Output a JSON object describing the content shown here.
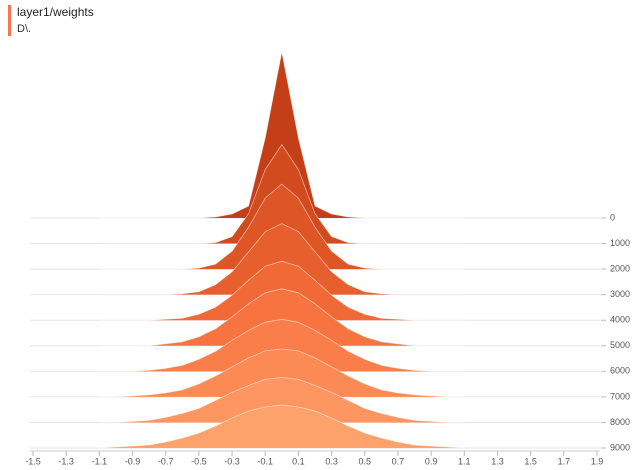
{
  "chart_data": {
    "type": "ridgeline",
    "title": "layer1/weights",
    "subtitle": "D\\.",
    "x": [
      -1.1,
      -1.0,
      -0.9,
      -0.8,
      -0.7,
      -0.6,
      -0.5,
      -0.4,
      -0.3,
      -0.2,
      -0.1,
      0,
      0.1,
      0.2,
      0.3,
      0.4,
      0.5,
      0.6,
      0.7,
      0.8,
      0.9,
      1.0,
      1.1
    ],
    "steps": [
      0,
      1000,
      2000,
      3000,
      4000,
      5000,
      6000,
      7000,
      8000,
      9000
    ],
    "series": [
      {
        "color": "#c43e17",
        "values": [
          0,
          0,
          0,
          0,
          0,
          0,
          0,
          1,
          4,
          12,
          80,
          166,
          80,
          12,
          4,
          1,
          0,
          0,
          0,
          0,
          0,
          0,
          0
        ]
      },
      {
        "color": "#d24b1f",
        "values": [
          0,
          0,
          0,
          0,
          0,
          0,
          0,
          1,
          7,
          30,
          74,
          99,
          74,
          30,
          7,
          1,
          0,
          0,
          0,
          0,
          0,
          0,
          0
        ]
      },
      {
        "color": "#de5526",
        "values": [
          0,
          0,
          0,
          0,
          0,
          0,
          1,
          5,
          18,
          42,
          71,
          85,
          71,
          42,
          18,
          5,
          1,
          0,
          0,
          0,
          0,
          0,
          0
        ]
      },
      {
        "color": "#e85f2e",
        "values": [
          0,
          0,
          0,
          0,
          0,
          1,
          3,
          10,
          23,
          43,
          63,
          71,
          63,
          43,
          23,
          10,
          3,
          1,
          0,
          0,
          0,
          0,
          0
        ]
      },
      {
        "color": "#f06936",
        "values": [
          0,
          0,
          0,
          0,
          1,
          2,
          6,
          13,
          25,
          40,
          54,
          59,
          54,
          40,
          25,
          13,
          6,
          2,
          1,
          0,
          0,
          0,
          0
        ]
      },
      {
        "color": "#f77440",
        "values": [
          0,
          0,
          0,
          0,
          2,
          4,
          9,
          17,
          29,
          42,
          53,
          57,
          53,
          42,
          29,
          17,
          9,
          4,
          2,
          0,
          0,
          0,
          0
        ]
      },
      {
        "color": "#fa7e4a",
        "values": [
          0,
          0,
          0,
          1,
          3,
          6,
          12,
          20,
          31,
          41,
          49,
          52,
          49,
          41,
          31,
          20,
          12,
          6,
          3,
          1,
          0,
          0,
          0
        ]
      },
      {
        "color": "#fc8a55",
        "values": [
          0,
          0,
          1,
          2,
          4,
          7,
          13,
          21,
          30,
          39,
          46,
          48,
          46,
          39,
          30,
          21,
          13,
          7,
          4,
          2,
          1,
          0,
          0
        ]
      },
      {
        "color": "#fd9660",
        "values": [
          0,
          0,
          1,
          2,
          5,
          9,
          14,
          22,
          30,
          37,
          43,
          45,
          43,
          37,
          30,
          22,
          14,
          9,
          5,
          2,
          1,
          0,
          0
        ]
      },
      {
        "color": "#fea26c",
        "values": [
          0,
          1,
          2,
          3,
          6,
          10,
          15,
          22,
          30,
          37,
          41,
          43,
          41,
          37,
          30,
          22,
          15,
          10,
          6,
          3,
          2,
          1,
          0
        ]
      }
    ],
    "xlim": [
      -1.5,
      1.9
    ],
    "xticks": [
      -1.5,
      -1.3,
      -1.1,
      -0.9,
      -0.7,
      -0.5,
      -0.3,
      -0.1,
      0.1,
      0.3,
      0.5,
      0.7,
      0.9,
      1.1,
      1.3,
      1.5,
      1.7,
      1.9
    ],
    "ylim": [
      0,
      9000
    ],
    "yticks": [
      0,
      1000,
      2000,
      3000,
      4000,
      5000,
      6000,
      7000,
      8000,
      9000
    ]
  }
}
